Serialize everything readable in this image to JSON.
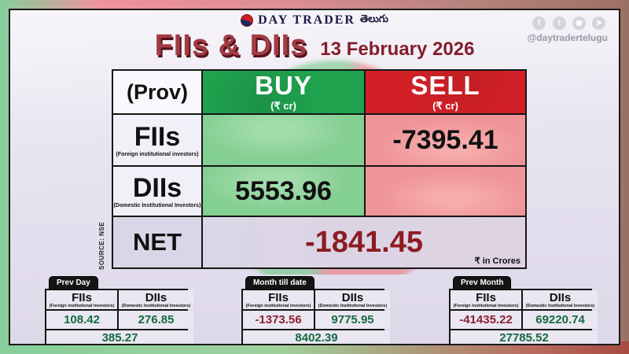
{
  "header": {
    "logo": {
      "brand": "DAY TRADER",
      "suffix": "తెలుగు"
    },
    "social": {
      "handle": "@daytradertelugu",
      "icons": [
        {
          "name": "facebook",
          "glyph": "f"
        },
        {
          "name": "twitter",
          "glyph": "t"
        },
        {
          "name": "instagram",
          "glyph": "◉"
        },
        {
          "name": "telegram",
          "glyph": "➤"
        }
      ]
    }
  },
  "title": {
    "main": "FIIs & DIIs",
    "date": "13 February 2026"
  },
  "main_table": {
    "source": "SOURCE: NSE",
    "unit_note": "₹ in Crores",
    "prov_label": "(Prov)",
    "buy_label": "BUY",
    "sell_label": "SELL",
    "unit_sub": "(₹ cr)",
    "fii": {
      "label": "FIIs",
      "sub": "(Foreign institutional investors)",
      "buy": "",
      "sell": "-7395.41"
    },
    "dii": {
      "label": "DIIs",
      "sub": "(Domestic Institutional Investors)",
      "buy": "5553.96",
      "sell": ""
    },
    "net": {
      "label": "NET",
      "value": "-1841.45"
    }
  },
  "summary_tables": [
    {
      "tab": "Prev Day",
      "fii_label": "FIIs",
      "fii_sub": "(Foreign institutional investors)",
      "dii_label": "DIIs",
      "dii_sub": "(Domestic Institutional Investors)",
      "fii": "108.42",
      "dii": "276.85",
      "total": "385.27"
    },
    {
      "tab": "Month till date",
      "fii_label": "FIIs",
      "fii_sub": "(Foreign institutional investors)",
      "dii_label": "DIIs",
      "dii_sub": "(Domestic Institutional Investors)",
      "fii": "-1373.56",
      "dii": "9775.95",
      "total": "8402.39"
    },
    {
      "tab": "Prev Month",
      "fii_label": "FIIs",
      "fii_sub": "(Foreign institutional investors)",
      "dii_label": "DIIs",
      "dii_sub": "(Domestic Institutional Investors)",
      "fii": "-41435.22",
      "dii": "69220.74",
      "total": "27785.52"
    }
  ],
  "colors": {
    "buy_green": "#1fa34e",
    "sell_red": "#d32027",
    "buy_cell_green": "#84cf92",
    "sell_cell_pink": "#ef9598",
    "positive_green": "#166b3f",
    "negative_red": "#8e2130",
    "net_red": "#8c1c22",
    "title_red": "#a23b44"
  }
}
